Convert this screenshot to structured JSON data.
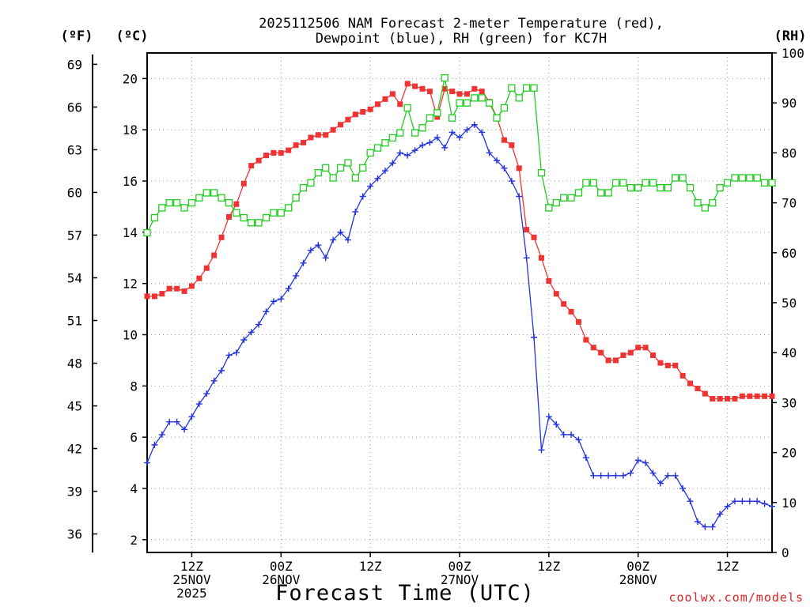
{
  "chart_data": {
    "type": "line",
    "title_lines": [
      "2025112506 NAM Forecast 2-meter Temperature (red),",
      "Dewpoint (blue), RH (green) for KC7H"
    ],
    "xlabel": "Forecast Time (UTC)",
    "axis_units": {
      "fahrenheit": "(ºF)",
      "celsius": "(ºC)",
      "rh": "(RH)"
    },
    "yleft_celsius": {
      "range": [
        1.5,
        21
      ],
      "ticks": [
        "2",
        "4",
        "6",
        "8",
        "10",
        "12",
        "14",
        "16",
        "18",
        "20"
      ]
    },
    "yleft_fahrenheit": {
      "ticks": [
        "36",
        "39",
        "42",
        "45",
        "48",
        "51",
        "54",
        "57",
        "60",
        "63",
        "66",
        "69"
      ]
    },
    "yright_rh": {
      "range": [
        0,
        100
      ],
      "ticks": [
        "0",
        "10",
        "20",
        "30",
        "40",
        "50",
        "60",
        "70",
        "80",
        "90",
        "100"
      ]
    },
    "x_ticks": [
      {
        "hour": 6,
        "lines": [
          "12Z",
          "25NOV",
          "2025"
        ]
      },
      {
        "hour": 18,
        "lines": [
          "00Z",
          "26NOV"
        ]
      },
      {
        "hour": 30,
        "lines": [
          "12Z"
        ]
      },
      {
        "hour": 42,
        "lines": [
          "00Z",
          "27NOV"
        ]
      },
      {
        "hour": 54,
        "lines": [
          "12Z"
        ]
      },
      {
        "hour": 66,
        "lines": [
          "00Z",
          "28NOV"
        ]
      },
      {
        "hour": 78,
        "lines": [
          "12Z"
        ]
      }
    ],
    "x_range_hours": [
      0,
      84
    ],
    "grid": true,
    "series": [
      {
        "name": "Temperature (red)",
        "color": "#ee3333",
        "marker": "filled-square",
        "axis": "celsius",
        "start_hour": 0,
        "values": [
          11.5,
          11.5,
          11.6,
          11.8,
          11.8,
          11.7,
          11.9,
          12.2,
          12.6,
          13.1,
          13.8,
          14.6,
          15.1,
          15.9,
          16.6,
          16.8,
          17.0,
          17.1,
          17.1,
          17.2,
          17.4,
          17.5,
          17.7,
          17.8,
          17.8,
          18.0,
          18.2,
          18.4,
          18.6,
          18.7,
          18.8,
          19.0,
          19.2,
          19.4,
          19.0,
          19.8,
          19.7,
          19.6,
          19.5,
          18.5,
          19.6,
          19.5,
          19.4,
          19.4,
          19.6,
          19.5,
          19.1,
          18.5,
          17.6,
          17.4,
          16.5,
          14.1,
          13.8,
          13.0,
          12.1,
          11.6,
          11.2,
          10.9,
          10.5,
          9.8,
          9.5,
          9.3,
          9.0,
          9.0,
          9.2,
          9.3,
          9.5,
          9.5,
          9.2,
          8.9,
          8.8,
          8.8,
          8.4,
          8.1,
          7.9,
          7.7,
          7.5,
          7.5,
          7.5,
          7.5,
          7.6,
          7.6,
          7.6,
          7.6,
          7.6
        ]
      },
      {
        "name": "Dewpoint (blue)",
        "color": "#2233dd",
        "marker": "plus",
        "axis": "celsius",
        "start_hour": 0,
        "values": [
          5.0,
          5.7,
          6.1,
          6.6,
          6.6,
          6.3,
          6.8,
          7.3,
          7.7,
          8.2,
          8.6,
          9.2,
          9.3,
          9.8,
          10.1,
          10.4,
          10.9,
          11.3,
          11.4,
          11.8,
          12.3,
          12.8,
          13.3,
          13.5,
          13.0,
          13.7,
          14.0,
          13.7,
          14.8,
          15.4,
          15.8,
          16.1,
          16.4,
          16.7,
          17.1,
          17.0,
          17.2,
          17.4,
          17.5,
          17.7,
          17.3,
          17.9,
          17.7,
          18.0,
          18.2,
          17.9,
          17.1,
          16.8,
          16.5,
          16.0,
          15.4,
          13.0,
          9.9,
          5.5,
          6.8,
          6.5,
          6.1,
          6.1,
          5.9,
          5.2,
          4.5,
          4.5,
          4.5,
          4.5,
          4.5,
          4.6,
          5.1,
          5.0,
          4.6,
          4.2,
          4.5,
          4.5,
          4.0,
          3.5,
          2.7,
          2.5,
          2.5,
          3.0,
          3.3,
          3.5,
          3.5,
          3.5,
          3.5,
          3.4,
          3.3
        ]
      },
      {
        "name": "RH (green)",
        "color": "#22cc22",
        "marker": "open-square",
        "axis": "rh",
        "start_hour": 0,
        "values": [
          64,
          67,
          69,
          70,
          70,
          69,
          70,
          71,
          72,
          72,
          71,
          70,
          68,
          67,
          66,
          66,
          67,
          68,
          68,
          69,
          71,
          73,
          74,
          76,
          77,
          75,
          77,
          78,
          75,
          77,
          80,
          81,
          82,
          83,
          84,
          89,
          84,
          85,
          87,
          88,
          95,
          87,
          90,
          90,
          91,
          91,
          90,
          87,
          89,
          93,
          91,
          93,
          93,
          76,
          69,
          70,
          71,
          71,
          72,
          74,
          74,
          72,
          72,
          74,
          74,
          73,
          73,
          74,
          74,
          73,
          73,
          75,
          75,
          73,
          70,
          69,
          70,
          73,
          74,
          75,
          75,
          75,
          75,
          74,
          74
        ]
      }
    ],
    "watermark": "coolwx.com/models"
  }
}
